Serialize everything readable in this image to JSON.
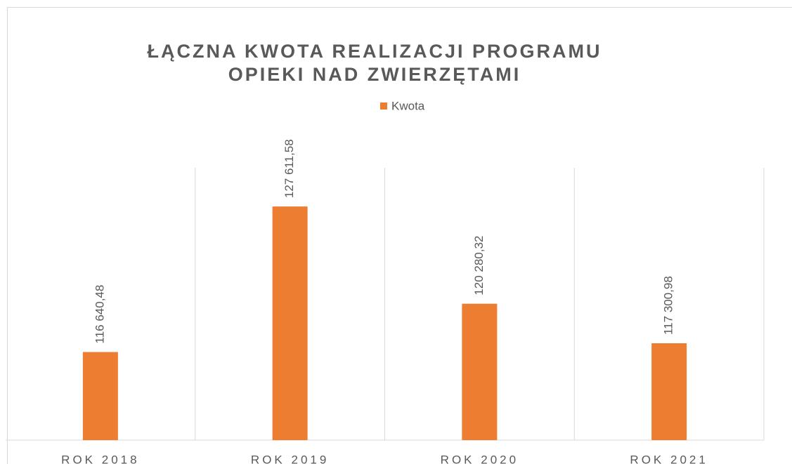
{
  "chart_data": {
    "type": "bar",
    "title": [
      "ŁĄCZNA KWOTA REALIZACJI PROGRAMU",
      "OPIEKI NAD ZWIERZĘTAMI"
    ],
    "categories": [
      "ROK 2018",
      "ROK 2019",
      "ROK 2020",
      "ROK 2021"
    ],
    "series": [
      {
        "name": "Kwota",
        "color": "#ed7d31",
        "values": [
          116640.48,
          127611.58,
          120280.32,
          117300.98
        ],
        "value_labels": [
          "116 640,48",
          "127 611,58",
          "120 280,32",
          "117 300,98"
        ]
      }
    ],
    "ylim": [
      110000,
      130000
    ],
    "grid": true,
    "legend": "top"
  }
}
